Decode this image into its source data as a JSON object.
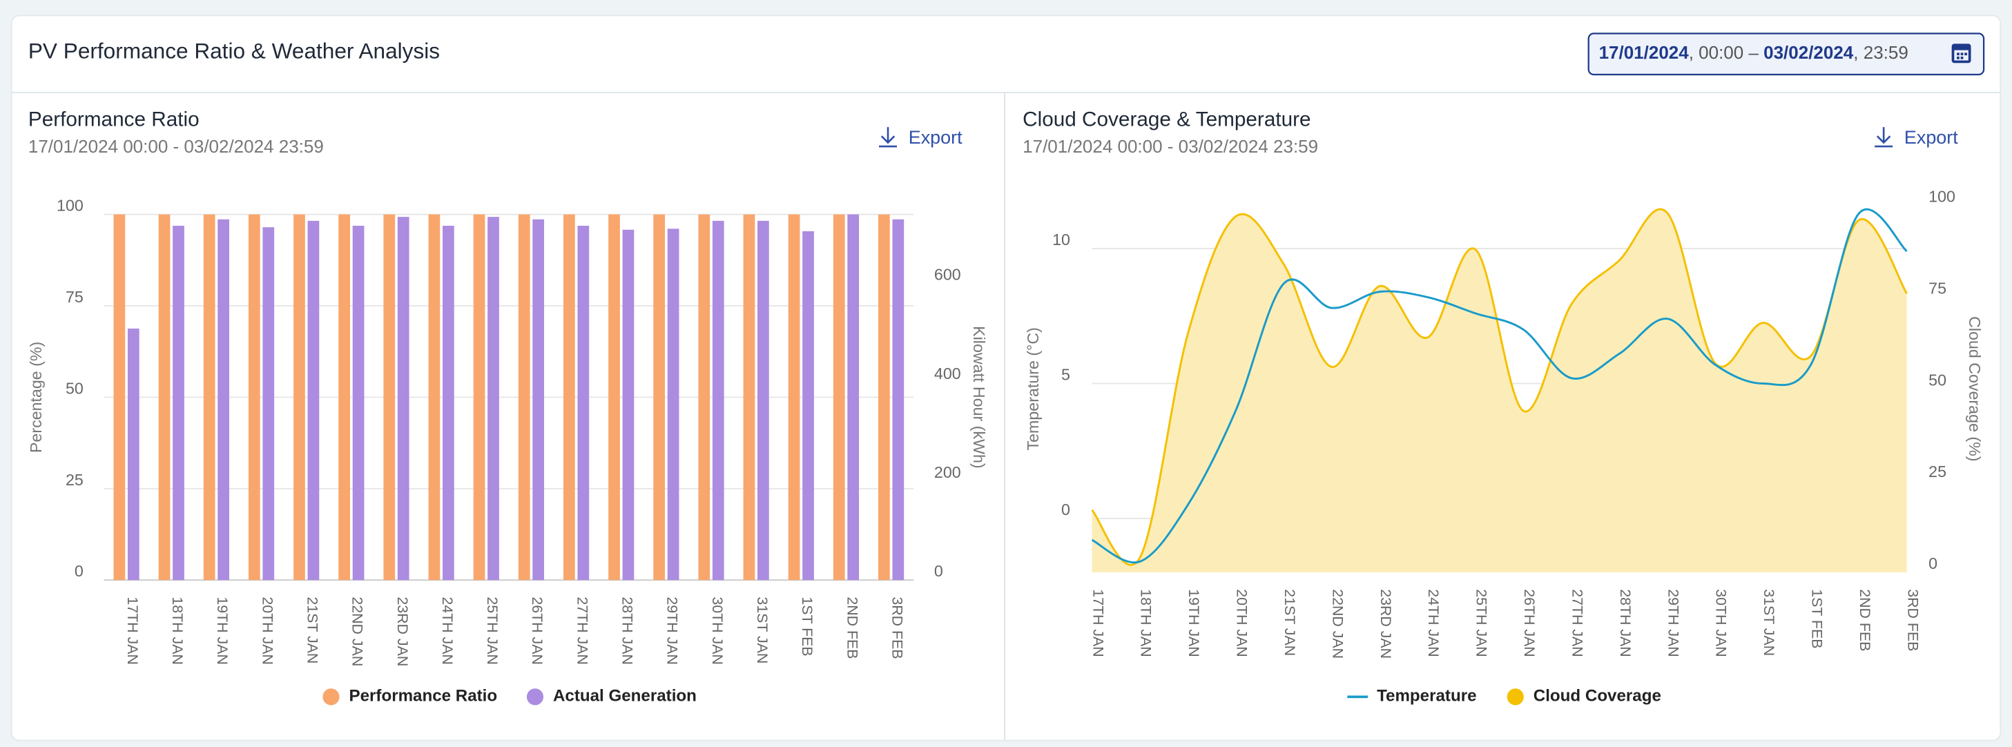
{
  "header": {
    "title": "PV Performance Ratio & Weather Analysis",
    "date_range": [
      "17/01/2024",
      ", 00:00 – ",
      "03/02/2024",
      ", 23:59"
    ]
  },
  "chart_data": [
    {
      "type": "bar",
      "title": "Performance Ratio",
      "subtitle": "17/01/2024 00:00 - 03/02/2024 23:59",
      "export": "Export",
      "categories": [
        "17TH JAN",
        "18TH JAN",
        "19TH JAN",
        "20TH JAN",
        "21ST JAN",
        "22ND JAN",
        "23RD JAN",
        "24TH JAN",
        "25TH JAN",
        "26TH JAN",
        "27TH JAN",
        "28TH JAN",
        "29TH JAN",
        "30TH JAN",
        "31ST JAN",
        "1ST FEB",
        "2ND FEB",
        "3RD FEB"
      ],
      "series": [
        {
          "name": "Performance Ratio",
          "color": "#f9a66c",
          "axis": "y",
          "values": [
            100,
            100,
            100,
            100,
            100,
            100,
            100,
            100,
            100,
            100,
            100,
            100,
            100,
            100,
            100,
            100,
            100,
            100
          ]
        },
        {
          "name": "Actual Generation",
          "color": "#ab8ce0",
          "axis": "y2",
          "values": [
            509,
            717,
            730,
            714,
            727,
            717,
            735,
            717,
            735,
            730,
            717,
            709,
            711,
            727,
            727,
            706,
            740,
            730
          ]
        }
      ],
      "ylabel": "Percentage (%)",
      "y2label": "Kilowatt Hour (kWh)",
      "ylim": [
        0,
        100
      ],
      "yticks": [
        0,
        25,
        50,
        75,
        100
      ],
      "y2lim": [
        0,
        740
      ],
      "y2ticks": [
        0,
        200,
        400,
        600
      ],
      "grid": true
    },
    {
      "type": "line",
      "title": "Cloud Coverage & Temperature",
      "subtitle": "17/01/2024 00:00 - 03/02/2024 23:59",
      "export": "Export",
      "categories": [
        "17TH JAN",
        "18TH JAN",
        "19TH JAN",
        "20TH JAN",
        "21ST JAN",
        "22ND JAN",
        "23RD JAN",
        "24TH JAN",
        "25TH JAN",
        "26TH JAN",
        "27TH JAN",
        "28TH JAN",
        "29TH JAN",
        "30TH JAN",
        "31ST JAN",
        "1ST FEB",
        "2ND FEB",
        "3RD FEB"
      ],
      "series": [
        {
          "name": "Temperature",
          "color": "#1a9bc9",
          "axis": "y",
          "mark": "line",
          "values": [
            -0.8,
            -1.6,
            0.5,
            4,
            8.7,
            7.8,
            8.4,
            8.2,
            7.6,
            7.0,
            5.2,
            6.1,
            7.4,
            5.7,
            5.0,
            5.7,
            11.3,
            9.9
          ]
        },
        {
          "name": "Cloud Coverage",
          "color": "#f5c000",
          "fill": "#fcedb8",
          "axis": "y2",
          "mark": "area",
          "values": [
            17,
            4,
            65,
            97,
            84,
            56,
            78,
            64,
            88,
            44,
            73,
            85,
            98,
            57,
            68,
            59,
            96,
            76
          ]
        }
      ],
      "ylabel": "Temperature (°C)",
      "y2label": "Cloud Coverage (%)",
      "ylim": [
        -2,
        11.6
      ],
      "yticks": [
        0,
        5,
        10
      ],
      "y2lim": [
        0,
        100
      ],
      "y2ticks": [
        0,
        25,
        50,
        75,
        100
      ],
      "grid": true
    }
  ]
}
